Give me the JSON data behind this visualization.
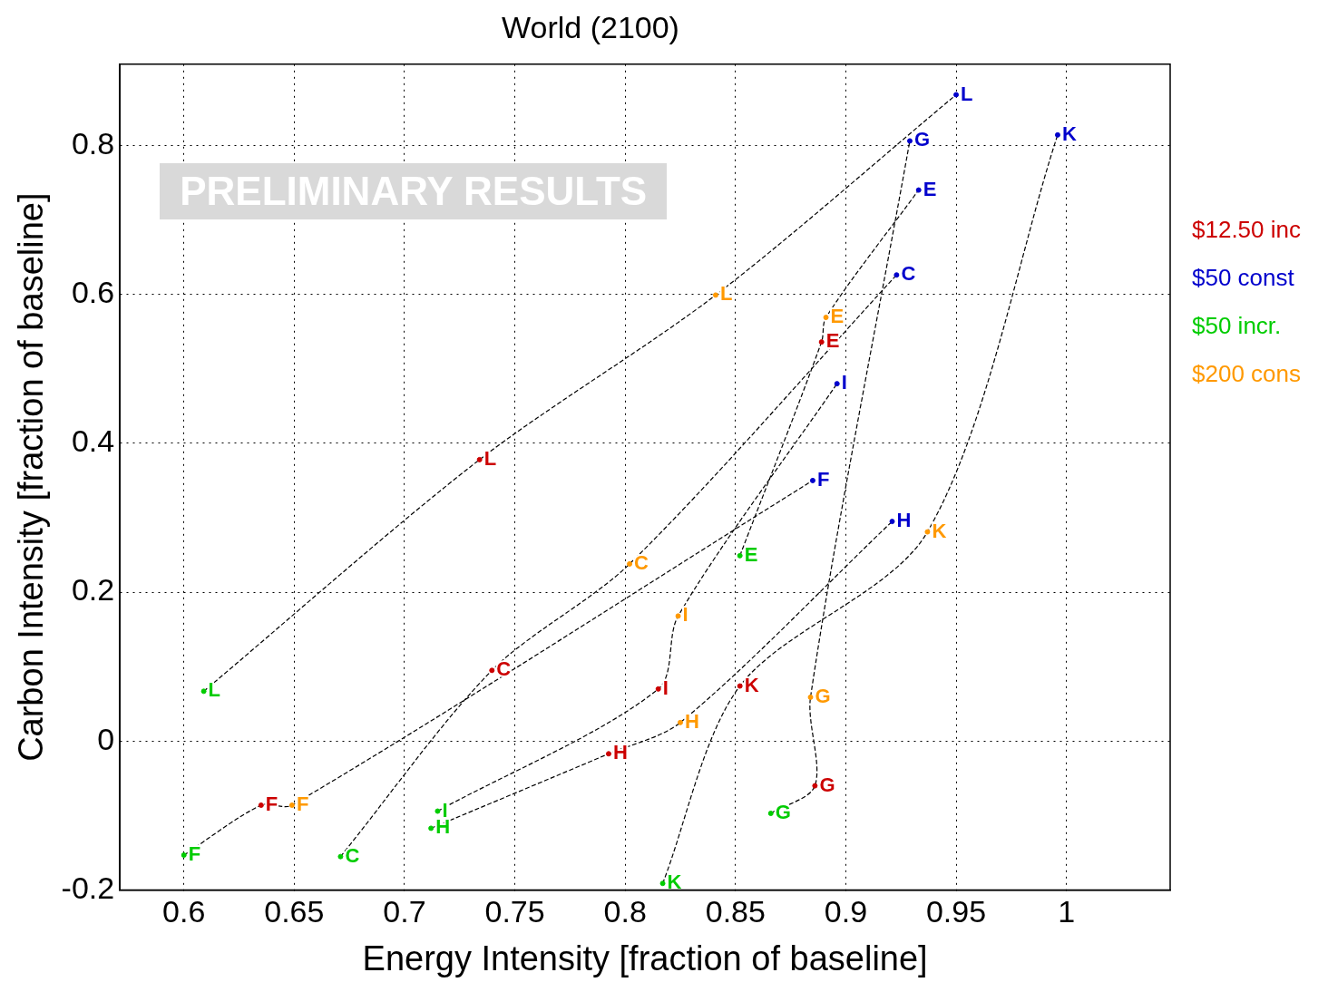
{
  "chart_data": {
    "type": "scatter",
    "title": "World (2100)",
    "xlabel": "Energy Intensity [fraction of baseline]",
    "ylabel": "Carbon Intensity [fraction of baseline]",
    "xlim": [
      0.571,
      1.047
    ],
    "ylim": [
      -0.2,
      0.909
    ],
    "xticks": [
      0.6,
      0.65,
      0.7,
      0.75,
      0.8,
      0.85,
      0.9,
      0.95,
      1
    ],
    "yticks": [
      -0.2,
      0,
      0.2,
      0.4,
      0.6,
      0.8
    ],
    "grid": true,
    "annotations": [
      "PRELIMINARY RESULTS"
    ],
    "series": [
      {
        "type": "line",
        "color": "#000000",
        "line_style": "dashed",
        "x": [
          0.671,
          0.7396,
          0.802,
          0.923
        ],
        "values": [
          -0.155,
          0.095,
          0.238,
          0.626
        ]
      },
      {
        "type": "line",
        "color": "#000000",
        "line_style": "dashed",
        "x": [
          0.852,
          0.889,
          0.891,
          0.933
        ],
        "values": [
          0.249,
          0.536,
          0.569,
          0.74
        ]
      },
      {
        "type": "line",
        "color": "#000000",
        "line_style": "dashed",
        "x": [
          0.6,
          0.635,
          0.649,
          0.885
        ],
        "values": [
          -0.153,
          -0.086,
          -0.086,
          0.35
        ]
      },
      {
        "type": "line",
        "color": "#000000",
        "line_style": "dashed",
        "x": [
          0.866,
          0.886,
          0.884,
          0.929
        ],
        "values": [
          -0.097,
          -0.06,
          0.059,
          0.806
        ]
      },
      {
        "type": "line",
        "color": "#000000",
        "line_style": "dashed",
        "x": [
          0.712,
          0.7925,
          0.825,
          0.921
        ],
        "values": [
          -0.117,
          -0.017,
          0.025,
          0.295
        ]
      },
      {
        "type": "line",
        "color": "#000000",
        "line_style": "dashed",
        "x": [
          0.715,
          0.815,
          0.824,
          0.896
        ],
        "values": [
          -0.094,
          0.07,
          0.168,
          0.48
        ]
      },
      {
        "type": "line",
        "color": "#000000",
        "line_style": "dashed",
        "x": [
          0.817,
          0.852,
          0.937,
          0.996
        ],
        "values": [
          -0.191,
          0.074,
          0.281,
          0.814
        ]
      },
      {
        "type": "line",
        "color": "#000000",
        "line_style": "dashed",
        "x": [
          0.609,
          0.734,
          0.841,
          0.95
        ],
        "values": [
          0.067,
          0.378,
          0.599,
          0.868
        ]
      },
      {
        "name": "$12.50 inc",
        "color": "#cc0000",
        "x": [
          0.7396,
          0.889,
          0.635,
          0.886,
          0.7925,
          0.815,
          0.852,
          0.734
        ],
        "values": [
          0.095,
          0.536,
          -0.086,
          -0.06,
          -0.017,
          0.07,
          0.074,
          0.378
        ],
        "value_labels": [
          "C",
          "E",
          "F",
          "G",
          "H",
          "I",
          "K",
          "L"
        ]
      },
      {
        "name": "$50 const",
        "color": "#0000cc",
        "x": [
          0.923,
          0.933,
          0.885,
          0.929,
          0.921,
          0.896,
          0.996,
          0.95
        ],
        "values": [
          0.626,
          0.74,
          0.35,
          0.806,
          0.295,
          0.48,
          0.814,
          0.868
        ],
        "value_labels": [
          "C",
          "E",
          "F",
          "G",
          "H",
          "I",
          "K",
          "L"
        ]
      },
      {
        "name": "$50 incr.",
        "color": "#00cc00",
        "x": [
          0.671,
          0.852,
          0.6,
          0.866,
          0.712,
          0.715,
          0.817,
          0.609
        ],
        "values": [
          -0.155,
          0.249,
          -0.153,
          -0.097,
          -0.117,
          -0.094,
          -0.191,
          0.067
        ],
        "value_labels": [
          "C",
          "E",
          "F",
          "G",
          "H",
          "I",
          "K",
          "L"
        ]
      },
      {
        "name": "$200 cons",
        "color": "#ff9900",
        "x": [
          0.802,
          0.891,
          0.649,
          0.884,
          0.825,
          0.824,
          0.937,
          0.841
        ],
        "values": [
          0.238,
          0.569,
          -0.086,
          0.059,
          0.025,
          0.168,
          0.281,
          0.599
        ],
        "value_labels": [
          "C",
          "E",
          "F",
          "G",
          "H",
          "I",
          "K",
          "L"
        ]
      }
    ]
  }
}
